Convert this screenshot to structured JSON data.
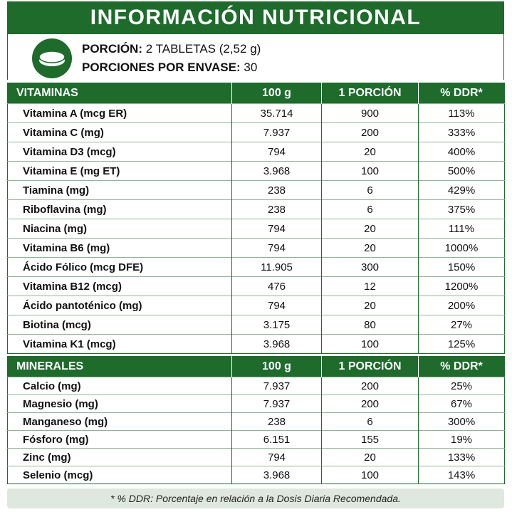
{
  "title": "INFORMACIÓN NUTRICIONAL",
  "serving": {
    "portion_label": "PORCIÓN:",
    "portion_value": "2 TABLETAS (2,52 g)",
    "servings_label": "PORCIONES POR ENVASE:",
    "servings_value": "30",
    "icon": "tablet-icon"
  },
  "vitamins": {
    "headers": [
      "VITAMINAS",
      "100 g",
      "1 PORCIÓN",
      "% DDR*"
    ],
    "rows": [
      [
        "Vitamina A (mcg ER)",
        "35.714",
        "900",
        "113%"
      ],
      [
        "Vitamina C (mg)",
        "7.937",
        "200",
        "333%"
      ],
      [
        "Vitamina D3 (mcg)",
        "794",
        "20",
        "400%"
      ],
      [
        "Vitamina E (mg ET)",
        "3.968",
        "100",
        "500%"
      ],
      [
        "Tiamina (mg)",
        "238",
        "6",
        "429%"
      ],
      [
        "Riboflavina (mg)",
        "238",
        "6",
        "375%"
      ],
      [
        "Niacina (mg)",
        "794",
        "20",
        "111%"
      ],
      [
        "Vitamina B6 (mg)",
        "794",
        "20",
        "1000%"
      ],
      [
        "Ácido Fólico (mcg DFE)",
        "11.905",
        "300",
        "150%"
      ],
      [
        "Vitamina B12 (mcg)",
        "476",
        "12",
        "1200%"
      ],
      [
        "Ácido pantoténico (mg)",
        "794",
        "20",
        "200%"
      ],
      [
        "Biotina (mcg)",
        "3.175",
        "80",
        "27%"
      ],
      [
        "Vitamina K1 (mcg)",
        "3.968",
        "100",
        "125%"
      ]
    ]
  },
  "minerals": {
    "headers": [
      "MINERALES",
      "100 g",
      "1 PORCIÓN",
      "% DDR*"
    ],
    "rows": [
      [
        "Calcio (mg)",
        "7.937",
        "200",
        "25%"
      ],
      [
        "Magnesio (mg)",
        "7.937",
        "200",
        "67%"
      ],
      [
        "Manganeso (mg)",
        "238",
        "6",
        "300%"
      ],
      [
        "Fósforo (mg)",
        "6.151",
        "155",
        "19%"
      ],
      [
        "Zinc (mg)",
        "794",
        "20",
        "133%"
      ],
      [
        "Selenio (mcg)",
        "3.968",
        "100",
        "143%"
      ]
    ]
  },
  "footnote": "* % DDR: Porcentaje en relación a la Dosis Diaria Recomendada.",
  "colors": {
    "brand_green": "#1e6b2c",
    "footnote_bg": "#dfe8de"
  }
}
